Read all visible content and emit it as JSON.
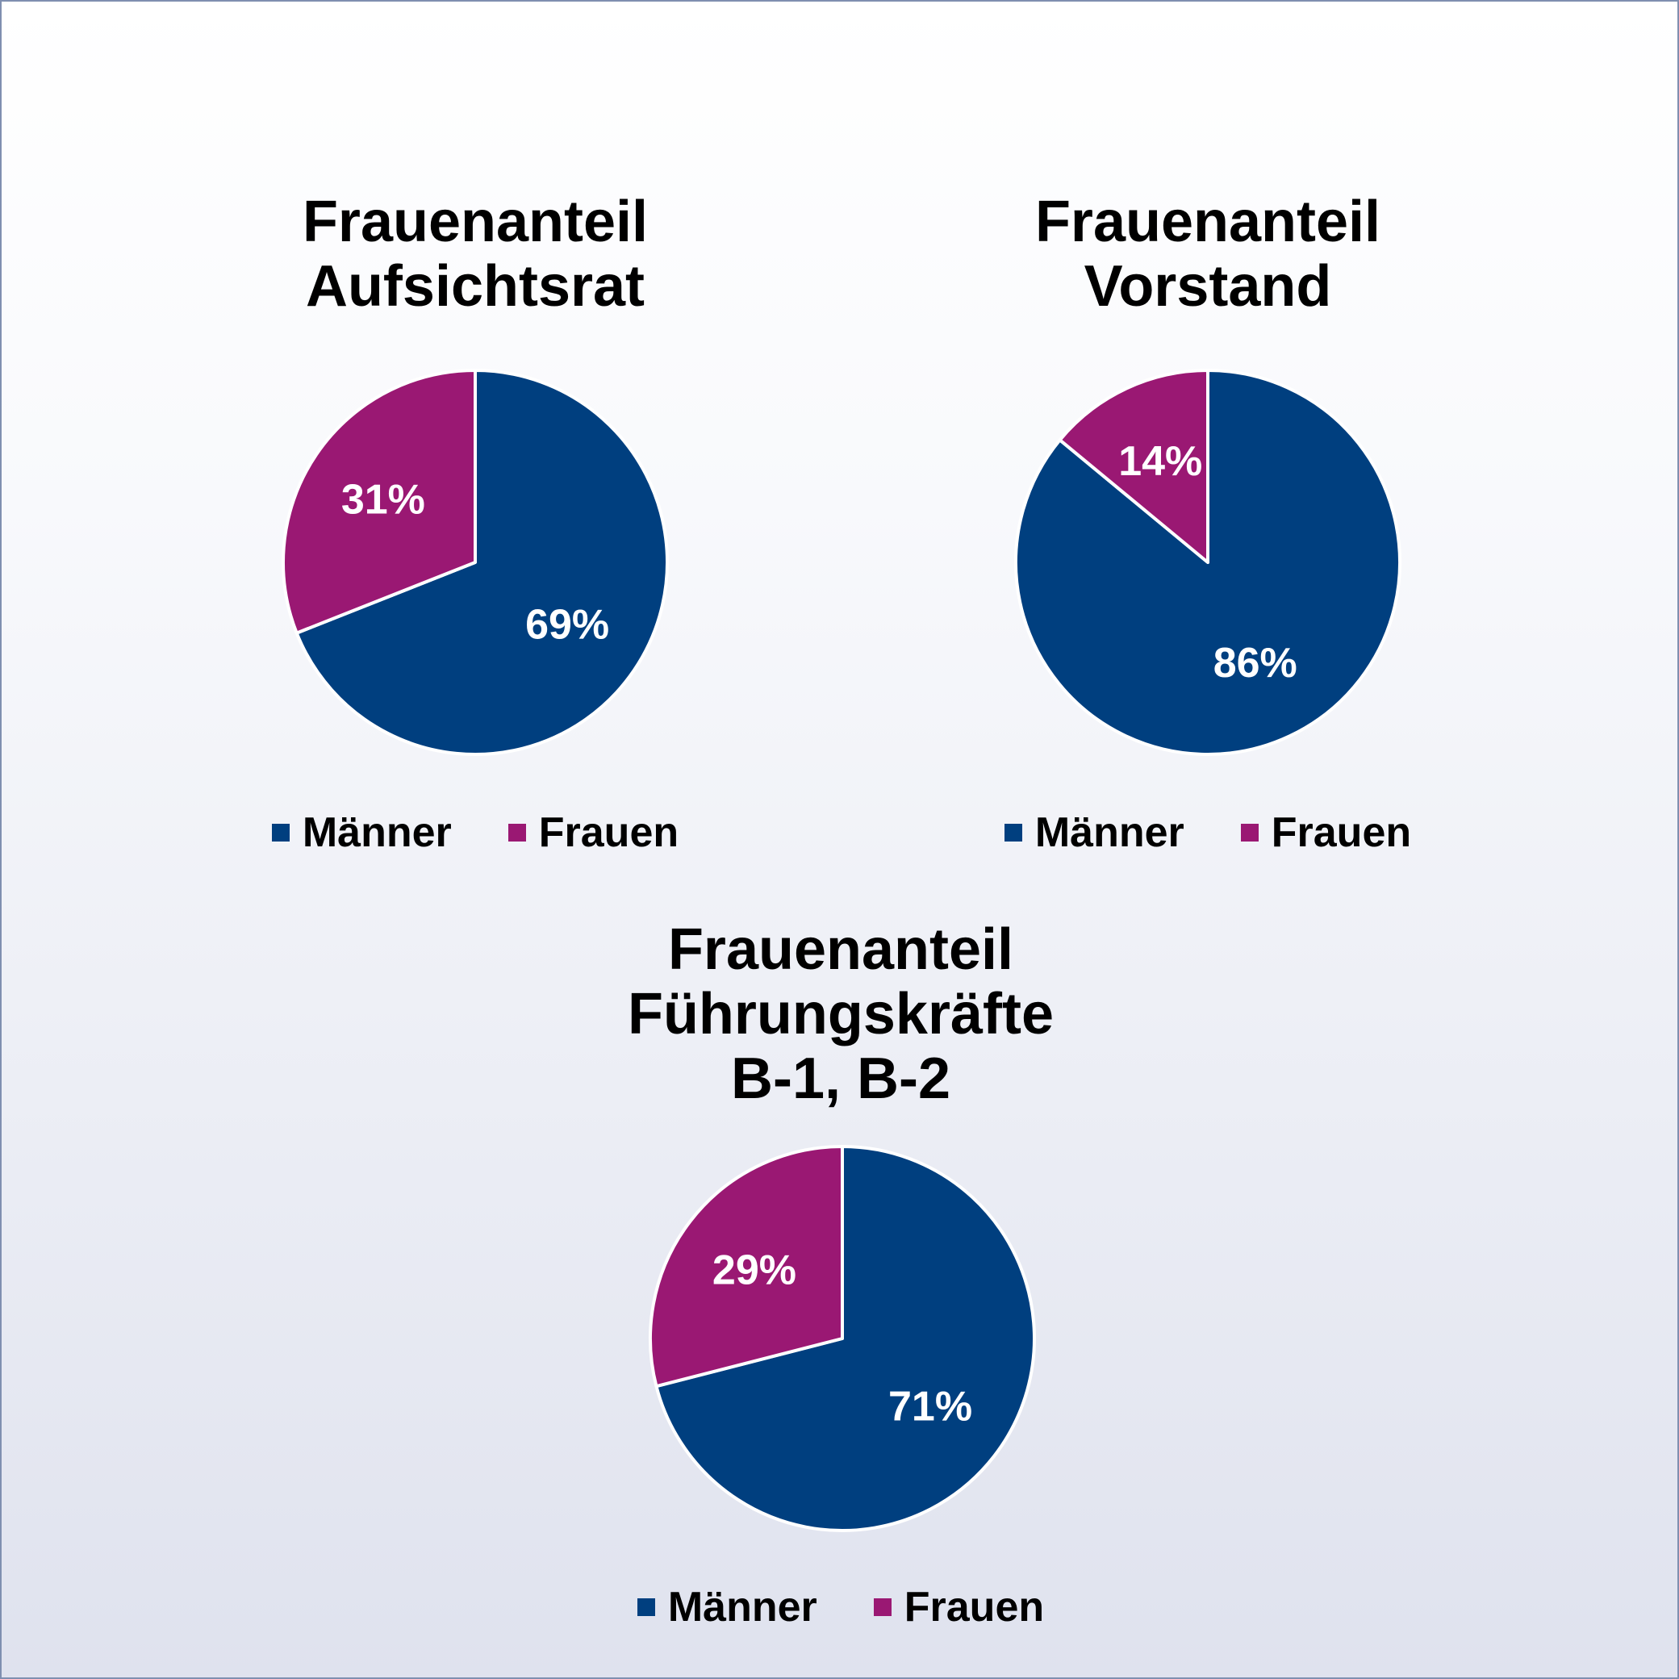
{
  "chart_data": [
    {
      "type": "pie",
      "title": "Frauenanteil\nAufsichtsrat",
      "categories": [
        "Männer",
        "Frauen"
      ],
      "values": [
        69,
        31
      ],
      "labels": [
        "69%",
        "31%"
      ],
      "colors": [
        "#003f7f",
        "#9a1873"
      ],
      "legend_position": "bottom"
    },
    {
      "type": "pie",
      "title": "Frauenanteil\nVorstand",
      "categories": [
        "Männer",
        "Frauen"
      ],
      "values": [
        86,
        14
      ],
      "labels": [
        "86%",
        "14%"
      ],
      "colors": [
        "#003f7f",
        "#9a1873"
      ],
      "legend_position": "bottom"
    },
    {
      "type": "pie",
      "title": "Frauenanteil\nFührungskräfte\nB-1, B-2",
      "categories": [
        "Männer",
        "Frauen"
      ],
      "values": [
        71,
        29
      ],
      "labels": [
        "71%",
        "29%"
      ],
      "colors": [
        "#003f7f",
        "#9a1873"
      ],
      "legend_position": "bottom"
    }
  ]
}
